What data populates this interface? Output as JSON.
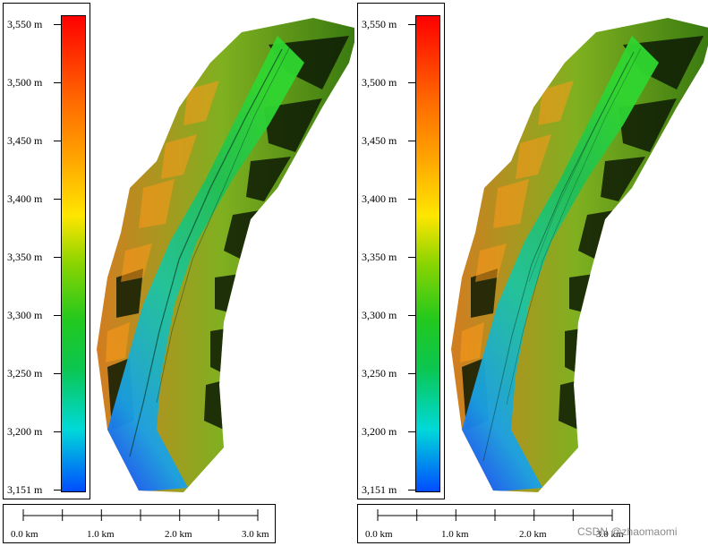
{
  "legend": {
    "unit": "m",
    "ticks": [
      "3,550 m",
      "3,500 m",
      "3,450 m",
      "3,400 m",
      "3,350 m",
      "3,300 m",
      "3,250 m",
      "3,200 m",
      "3,151 m"
    ],
    "min_value": 3151,
    "max_value": 3560,
    "colors": [
      "#ff0000",
      "#ff6a00",
      "#ffa500",
      "#ffe600",
      "#8bd400",
      "#22c81e",
      "#0bc64f",
      "#00d9d9",
      "#004cff"
    ]
  },
  "scale_bar": {
    "labels": [
      "0.0 km",
      "1.0 km",
      "2.0 km",
      "3.0 km"
    ],
    "max_km": 3.0
  },
  "panels": [
    {
      "id": "left",
      "title": ""
    },
    {
      "id": "right",
      "title": ""
    }
  ],
  "watermark": "CSDN @zhaomaomi"
}
